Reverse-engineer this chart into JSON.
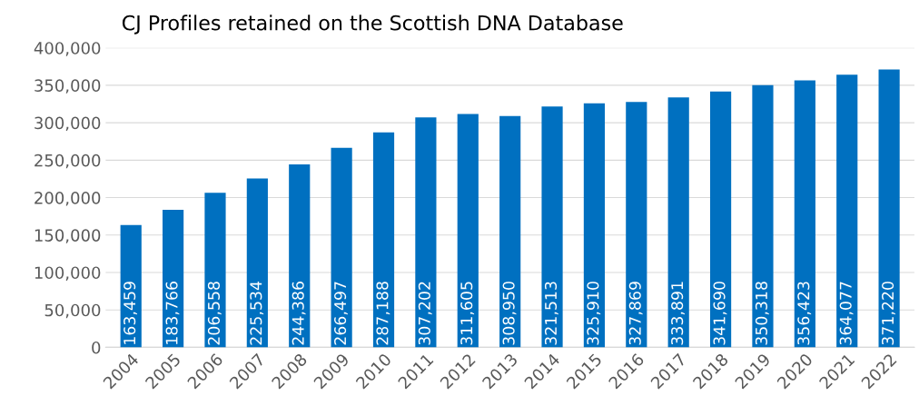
{
  "chart_data": {
    "type": "bar",
    "title": "CJ Profiles retained on the Scottish DNA Database",
    "categories": [
      "2004",
      "2005",
      "2006",
      "2007",
      "2008",
      "2009",
      "2010",
      "2011",
      "2012",
      "2013",
      "2014",
      "2015",
      "2016",
      "2017",
      "2018",
      "2019",
      "2020",
      "2021",
      "2022"
    ],
    "values": [
      163459,
      183766,
      206558,
      225534,
      244386,
      266497,
      287188,
      307202,
      311605,
      308950,
      321513,
      325910,
      327869,
      333891,
      341690,
      350318,
      356423,
      364077,
      371220
    ],
    "color": "#0070c0",
    "ylim": [
      0,
      400000
    ],
    "yticks": [
      {
        "value": 0,
        "label": "0"
      },
      {
        "value": 50000,
        "label": "50,000"
      },
      {
        "value": 100000,
        "label": "100,000"
      },
      {
        "value": 150000,
        "label": "150,000"
      },
      {
        "value": 200000,
        "label": "200,000"
      },
      {
        "value": 250000,
        "label": "250,000"
      },
      {
        "value": 300000,
        "label": "300,000"
      },
      {
        "value": 350000,
        "label": "350,000"
      },
      {
        "value": 400000,
        "label": "400,000"
      }
    ],
    "value_labels": [
      "163,459",
      "183,766",
      "206,558",
      "225,534",
      "244,386",
      "266,497",
      "287,188",
      "307,202",
      "311,605",
      "308,950",
      "321,513",
      "325,910",
      "327,869",
      "333,891",
      "341,690",
      "350,318",
      "356,423",
      "364,077",
      "371,220"
    ],
    "grid": "y"
  }
}
